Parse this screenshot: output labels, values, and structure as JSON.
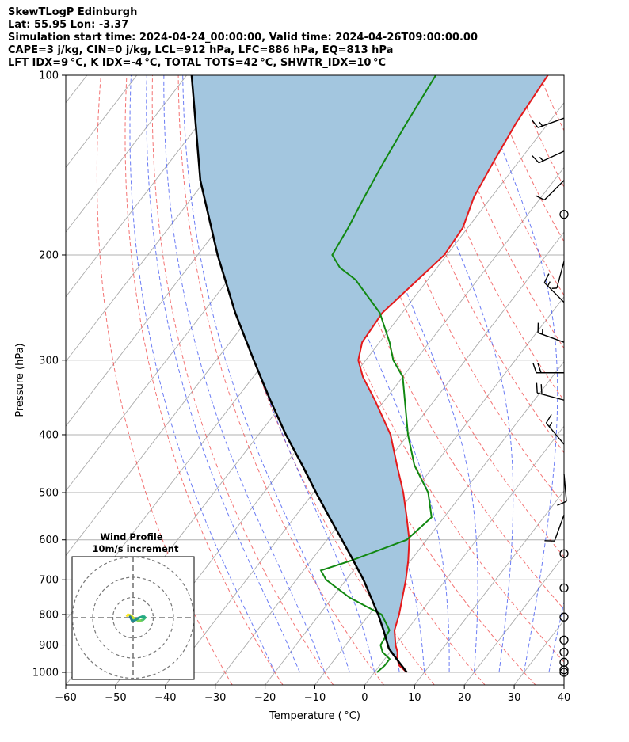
{
  "header": {
    "line1": "SkewTLogP Edinburgh",
    "line2": "Lat: 55.95   Lon: -3.37",
    "line3": "Simulation start time: 2024-04-24_00:00:00, Valid time: 2024-04-26T09:00:00.00",
    "line4": "CAPE=3 j/kg, CIN=0 j/kg, LCL=912 hPa, LFC=886 hPa, EQ=813 hPa",
    "line5": "LFT IDX=9 °C, K IDX=-4 °C, TOTAL TOTS=42 °C, SHWTR_IDX=10 °C"
  },
  "chart_data": {
    "type": "line",
    "title": "SkewTLogP Edinburgh",
    "xlabel": "Temperature ( °C)",
    "ylabel": "Pressure (hPa)",
    "xlim": [
      -60,
      40
    ],
    "ylim": [
      1050,
      100
    ],
    "y_scale": "log",
    "x_ticks": [
      -60,
      -50,
      -40,
      -30,
      -20,
      -10,
      0,
      10,
      20,
      30,
      40
    ],
    "x_tick_labels": [
      "−60",
      "−50",
      "−40",
      "−30",
      "−20",
      "−10",
      "0",
      "10",
      "20",
      "30",
      "40"
    ],
    "y_ticks": [
      1000,
      900,
      800,
      700,
      600,
      500,
      400,
      300,
      200,
      100
    ],
    "y_tick_labels": [
      "1000",
      "900",
      "800",
      "700",
      "600",
      "500",
      "400",
      "300",
      "200",
      "100"
    ],
    "grid": true,
    "colors": {
      "temperature": "#e41a1c",
      "dewpoint": "#118811",
      "parcel": "#000000",
      "cape_fill": "#a3c6df",
      "dry_adiabat": "#f05050",
      "moist_adiabat": "#3a50f0",
      "mixing_ratio": "#3a50f0",
      "isotherm": "#aaaaaa",
      "zero_isotherm": "#9b40c0"
    },
    "series": [
      {
        "key": "temperature",
        "p": [
          1000,
          975,
          950,
          925,
          900,
          850,
          800,
          700,
          650,
          600,
          550,
          500,
          450,
          400,
          350,
          320,
          300,
          280,
          250,
          200,
          180,
          160,
          140,
          120,
          100
        ],
        "t": [
          6.5,
          4.0,
          2.5,
          1.5,
          0.0,
          -2.5,
          -4.0,
          -8.0,
          -10.5,
          -13.5,
          -17.5,
          -22.0,
          -27.5,
          -33.5,
          -42.0,
          -48.0,
          -51.5,
          -53.5,
          -54.0,
          -50.5,
          -51.0,
          -53.5,
          -55.0,
          -56.5,
          -57.5
        ]
      },
      {
        "key": "dewpoint",
        "p": [
          1000,
          975,
          950,
          925,
          900,
          850,
          800,
          750,
          700,
          675,
          650,
          600,
          550,
          500,
          450,
          400,
          350,
          320,
          300,
          280,
          250,
          220,
          210,
          200,
          180,
          160,
          140,
          120,
          100
        ],
        "t": [
          0.5,
          1.0,
          1.0,
          -1.5,
          -3.0,
          -3.5,
          -7.5,
          -16.5,
          -24.0,
          -26.5,
          -22.0,
          -14.0,
          -12.5,
          -17.0,
          -24.0,
          -30.0,
          -36.0,
          -40.0,
          -44.5,
          -48.0,
          -54.5,
          -64.5,
          -69.5,
          -73.0,
          -74.0,
          -75.5,
          -77.0,
          -78.5,
          -80.0
        ]
      },
      {
        "key": "parcel",
        "p": [
          1000,
          950,
          912,
          886,
          850,
          800,
          750,
          700,
          650,
          600,
          550,
          500,
          450,
          400,
          350,
          300,
          250,
          200,
          150,
          100
        ],
        "t": [
          6.5,
          2.4,
          -0.8,
          -2.4,
          -4.7,
          -8.2,
          -12.2,
          -16.5,
          -21.5,
          -27.0,
          -33.0,
          -39.5,
          -46.5,
          -54.5,
          -63.0,
          -72.5,
          -83.5,
          -96.0,
          -111.0,
          -129.0
        ]
      }
    ],
    "wind_barbs": [
      {
        "p": 1000,
        "calm": true
      },
      {
        "p": 990,
        "calm": true
      },
      {
        "p": 962,
        "calm": true
      },
      {
        "p": 925,
        "calm": true
      },
      {
        "p": 883,
        "calm": true
      },
      {
        "p": 808,
        "calm": true
      },
      {
        "p": 722,
        "calm": true
      },
      {
        "p": 633,
        "calm": true
      },
      {
        "p": 545,
        "dir": 200,
        "speed": 10
      },
      {
        "p": 465,
        "dir": 175,
        "speed": 10
      },
      {
        "p": 415,
        "dir": 320,
        "speed": 15
      },
      {
        "p": 350,
        "dir": 285,
        "speed": 20
      },
      {
        "p": 315,
        "dir": 270,
        "speed": 20
      },
      {
        "p": 280,
        "dir": 290,
        "speed": 15
      },
      {
        "p": 240,
        "dir": 315,
        "speed": 15
      },
      {
        "p": 205,
        "dir": 195,
        "speed": 5
      },
      {
        "p": 171,
        "calm": true
      },
      {
        "p": 150,
        "dir": 225,
        "speed": 10
      },
      {
        "p": 134,
        "dir": 245,
        "speed": 15
      },
      {
        "p": 118,
        "dir": 250,
        "speed": 15
      }
    ],
    "hodograph": {
      "title": "Wind Profile",
      "subtitle": "10m/s increment",
      "rings": [
        10,
        20,
        30
      ],
      "points_u": [
        -3.0,
        -2.5,
        -1.5,
        -0.5,
        0.5,
        1.5,
        2.5,
        3.5,
        4.5,
        5.0,
        5.5,
        6.0,
        5.5,
        4.5,
        3.0,
        1.5,
        0.5,
        -0.5,
        -1.0,
        -1.5
      ],
      "points_v": [
        1.0,
        1.5,
        1.2,
        0.5,
        -0.5,
        -1.0,
        -1.5,
        -1.5,
        -1.2,
        -1.0,
        -0.5,
        0.0,
        0.5,
        0.5,
        0.0,
        -1.0,
        -1.5,
        -1.5,
        -0.5,
        0.5
      ]
    }
  }
}
